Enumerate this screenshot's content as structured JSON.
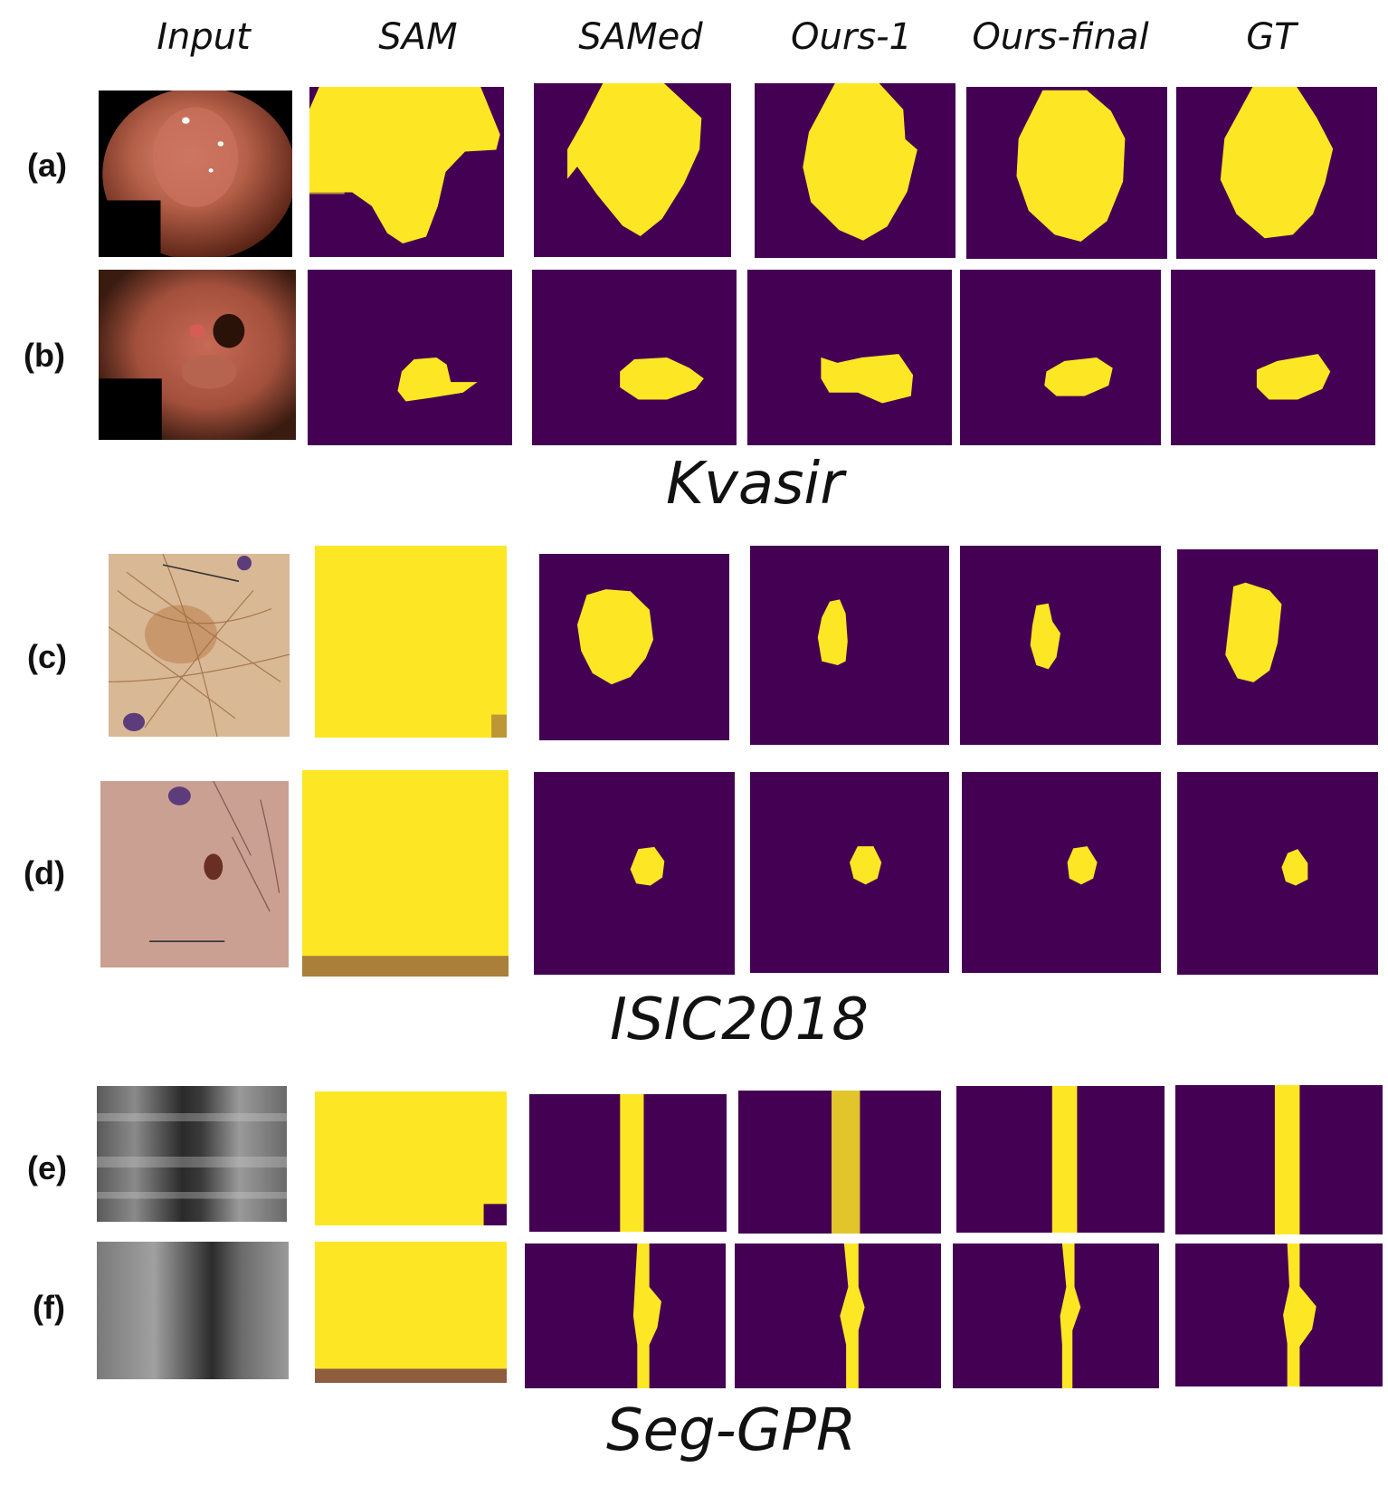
{
  "column_headers": [
    "Input",
    "SAM",
    "SAMed",
    "Ours-1",
    "Ours-final",
    "GT"
  ],
  "row_labels": [
    "(a)",
    "(b)",
    "(c)",
    "(d)",
    "(e)",
    "(f)"
  ],
  "dataset_labels": [
    "Kvasir",
    "ISIC2018",
    "Seg-GPR"
  ],
  "colors": {
    "mask_background": "#440154",
    "mask_foreground": "#fde725"
  }
}
